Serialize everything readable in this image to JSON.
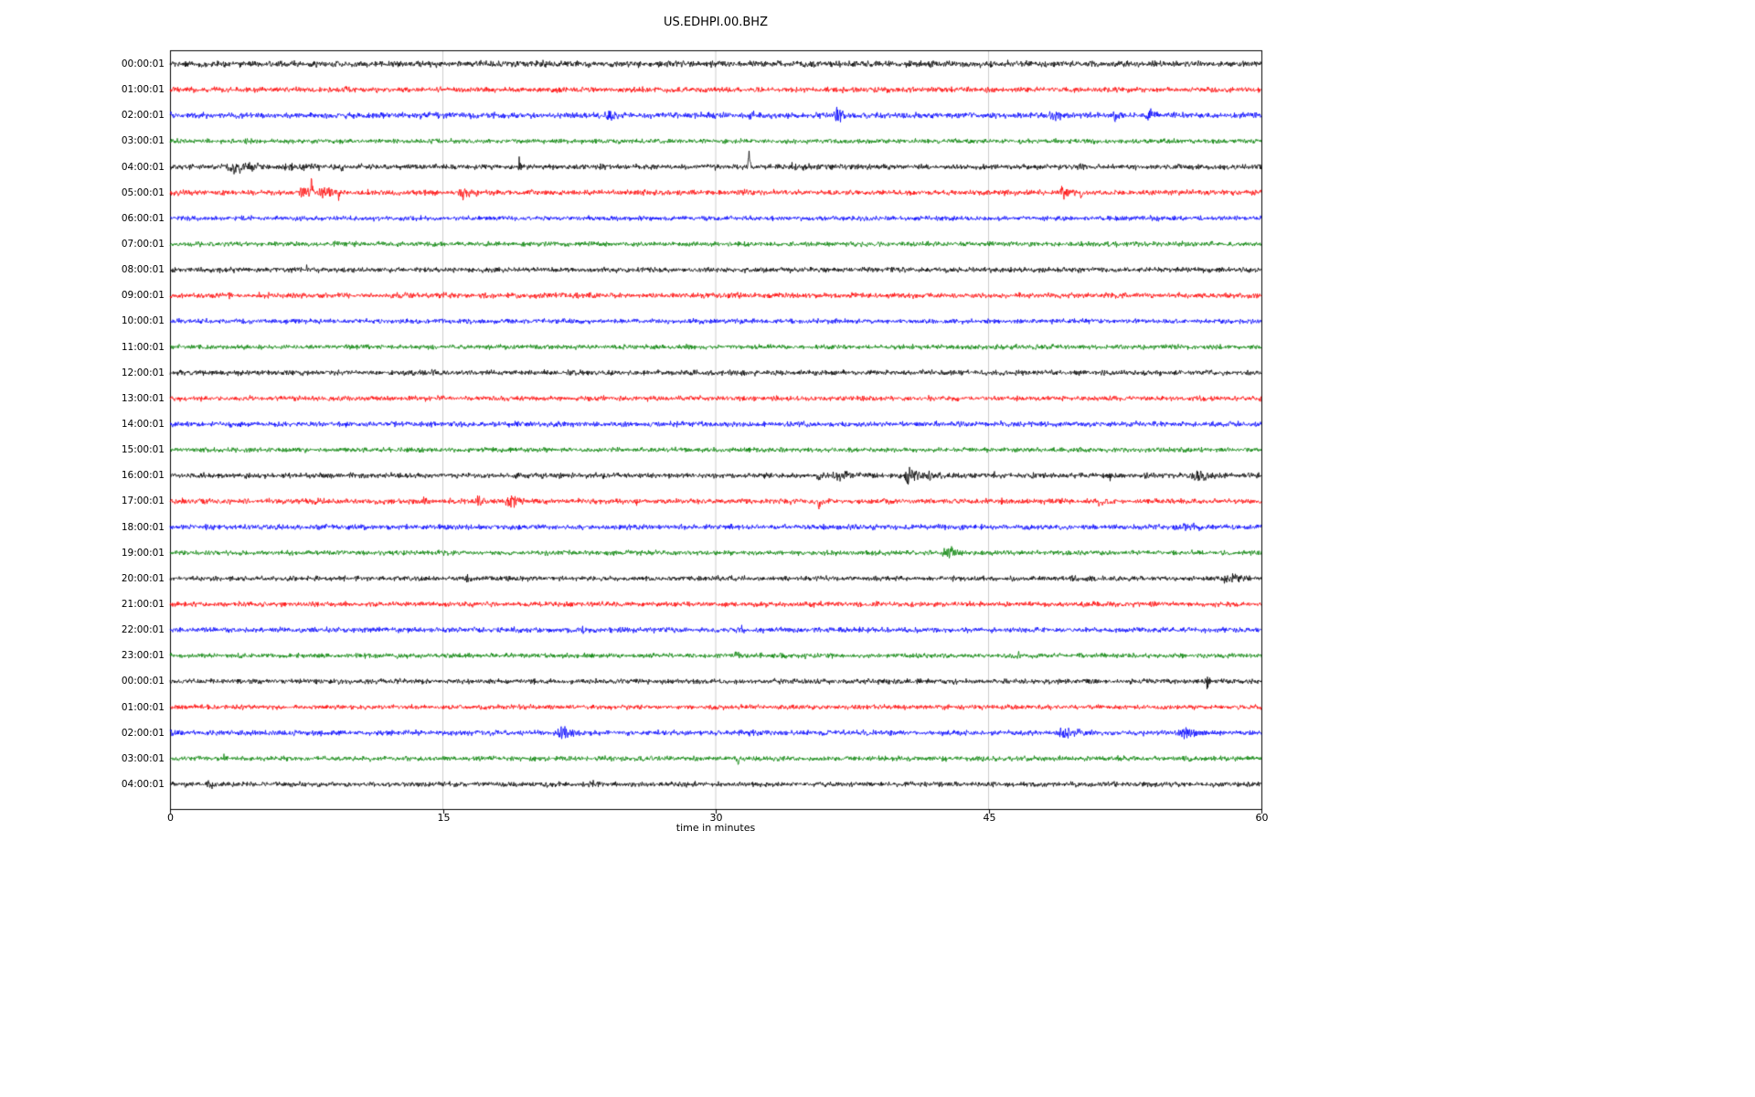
{
  "chart_data": {
    "type": "line",
    "subtype": "seismogram-helicorder",
    "title": "US.EDHPI.00.BHZ",
    "xlabel": "time in minutes",
    "x_range": [
      0,
      60
    ],
    "x_ticks": [
      0,
      15,
      30,
      45,
      60
    ],
    "grid_minutes": [
      15,
      30,
      45
    ],
    "grid_color": "#c0c0c0",
    "axis_color": "#000000",
    "trace_colors_cycle": [
      "#000000",
      "#ff0000",
      "#0000ff",
      "#008000"
    ],
    "rows": [
      {
        "label": "00:00:01",
        "color": "#000000",
        "noise": 2.4,
        "events": []
      },
      {
        "label": "01:00:01",
        "color": "#ff0000",
        "noise": 2.0,
        "events": [
          {
            "start": 9.55,
            "end": 9.85,
            "amp": 6,
            "bias": 1
          }
        ]
      },
      {
        "label": "02:00:01",
        "color": "#0000ff",
        "noise": 2.2,
        "events": [
          {
            "start": 23.7,
            "end": 25.3,
            "amp": 7
          },
          {
            "start": 27.0,
            "end": 27.3,
            "amp": 5
          },
          {
            "start": 31.8,
            "end": 32.1,
            "amp": 8
          },
          {
            "start": 36.4,
            "end": 37.3,
            "amp": 9
          },
          {
            "start": 38.7,
            "end": 39.0,
            "amp": 6
          },
          {
            "start": 48.2,
            "end": 49.2,
            "amp": 5
          },
          {
            "start": 51.8,
            "end": 52.4,
            "amp": 7
          },
          {
            "start": 53.6,
            "end": 54.4,
            "amp": 9
          }
        ]
      },
      {
        "label": "03:00:01",
        "color": "#008000",
        "noise": 1.8,
        "events": []
      },
      {
        "label": "04:00:01",
        "color": "#000000",
        "noise": 2.0,
        "events": [
          {
            "start": 2.9,
            "end": 5.7,
            "amp": 7
          },
          {
            "start": 5.7,
            "end": 9.3,
            "amp": 3.5
          },
          {
            "start": 9.3,
            "end": 9.6,
            "amp": 7,
            "bias": -1
          },
          {
            "start": 19.1,
            "end": 19.4,
            "amp": 11
          },
          {
            "start": 31.75,
            "end": 32.0,
            "amp": 26,
            "bias": 1
          },
          {
            "start": 31.95,
            "end": 32.15,
            "amp": 8,
            "bias": -1
          },
          {
            "start": 32.2,
            "end": 40.5,
            "amp": 2.5
          }
        ]
      },
      {
        "label": "05:00:01",
        "color": "#ff0000",
        "noise": 2.0,
        "events": [
          {
            "start": 7.0,
            "end": 8.0,
            "amp": 8
          },
          {
            "start": 7.7,
            "end": 7.95,
            "amp": 20,
            "bias": 1
          },
          {
            "start": 8.0,
            "end": 9.7,
            "amp": 7
          },
          {
            "start": 9.2,
            "end": 9.45,
            "amp": 10,
            "bias": -1
          },
          {
            "start": 15.8,
            "end": 16.9,
            "amp": 7
          },
          {
            "start": 16.0,
            "end": 16.25,
            "amp": 12,
            "bias": -1
          },
          {
            "start": 48.8,
            "end": 50.0,
            "amp": 7
          },
          {
            "start": 50.0,
            "end": 50.3,
            "amp": 6,
            "bias": -1
          }
        ]
      },
      {
        "label": "06:00:01",
        "color": "#0000ff",
        "noise": 1.8,
        "events": []
      },
      {
        "label": "07:00:01",
        "color": "#008000",
        "noise": 1.8,
        "events": []
      },
      {
        "label": "08:00:01",
        "color": "#000000",
        "noise": 1.9,
        "events": [
          {
            "start": 7.4,
            "end": 7.8,
            "amp": 3
          }
        ]
      },
      {
        "label": "09:00:01",
        "color": "#ff0000",
        "noise": 2.0,
        "events": []
      },
      {
        "label": "10:00:01",
        "color": "#0000ff",
        "noise": 1.8,
        "events": []
      },
      {
        "label": "11:00:01",
        "color": "#008000",
        "noise": 1.8,
        "events": []
      },
      {
        "label": "12:00:01",
        "color": "#000000",
        "noise": 2.0,
        "events": []
      },
      {
        "label": "13:00:01",
        "color": "#ff0000",
        "noise": 1.9,
        "events": []
      },
      {
        "label": "14:00:01",
        "color": "#0000ff",
        "noise": 2.0,
        "events": []
      },
      {
        "label": "15:00:01",
        "color": "#008000",
        "noise": 1.8,
        "events": []
      },
      {
        "label": "16:00:01",
        "color": "#000000",
        "noise": 2.0,
        "events": [
          {
            "start": 35.5,
            "end": 35.75,
            "amp": 11,
            "bias": -1
          },
          {
            "start": 36.0,
            "end": 38.6,
            "amp": 5
          },
          {
            "start": 40.3,
            "end": 41.5,
            "amp": 13
          },
          {
            "start": 41.6,
            "end": 42.1,
            "amp": 8
          },
          {
            "start": 45.2,
            "end": 45.6,
            "amp": 6
          },
          {
            "start": 47.3,
            "end": 48.0,
            "amp": 4
          },
          {
            "start": 51.6,
            "end": 52.0,
            "amp": 8
          },
          {
            "start": 56.0,
            "end": 57.5,
            "amp": 9
          }
        ]
      },
      {
        "label": "17:00:01",
        "color": "#ff0000",
        "noise": 2.0,
        "events": [
          {
            "start": 13.9,
            "end": 14.2,
            "amp": 5
          },
          {
            "start": 16.7,
            "end": 17.5,
            "amp": 7
          },
          {
            "start": 18.4,
            "end": 19.5,
            "amp": 7
          },
          {
            "start": 20.5,
            "end": 20.9,
            "amp": 6,
            "bias": -1
          },
          {
            "start": 25.4,
            "end": 25.8,
            "amp": 5
          },
          {
            "start": 35.6,
            "end": 35.9,
            "amp": 10,
            "bias": -1
          },
          {
            "start": 45.6,
            "end": 46.0,
            "amp": 4
          },
          {
            "start": 51.0,
            "end": 51.3,
            "amp": 7,
            "bias": -1
          }
        ]
      },
      {
        "label": "18:00:01",
        "color": "#0000ff",
        "noise": 2.0,
        "events": [
          {
            "start": 14.7,
            "end": 15.1,
            "amp": 6
          },
          {
            "start": 55.0,
            "end": 58.0,
            "amp": 2.5
          }
        ]
      },
      {
        "label": "19:00:01",
        "color": "#008000",
        "noise": 1.8,
        "events": [
          {
            "start": 42.3,
            "end": 43.6,
            "amp": 9
          },
          {
            "start": 57.8,
            "end": 58.2,
            "amp": 3
          }
        ]
      },
      {
        "label": "20:00:01",
        "color": "#000000",
        "noise": 1.9,
        "events": [
          {
            "start": 16.2,
            "end": 16.6,
            "amp": 5
          },
          {
            "start": 18.4,
            "end": 18.8,
            "amp": 5
          },
          {
            "start": 44.2,
            "end": 44.6,
            "amp": 4
          },
          {
            "start": 49.4,
            "end": 50.0,
            "amp": 5
          },
          {
            "start": 50.5,
            "end": 51.0,
            "amp": 4
          },
          {
            "start": 57.5,
            "end": 59.5,
            "amp": 5
          }
        ]
      },
      {
        "label": "21:00:01",
        "color": "#ff0000",
        "noise": 1.9,
        "events": []
      },
      {
        "label": "22:00:01",
        "color": "#0000ff",
        "noise": 2.0,
        "events": [
          {
            "start": 22.5,
            "end": 22.9,
            "amp": 4
          },
          {
            "start": 27.0,
            "end": 27.4,
            "amp": 4
          },
          {
            "start": 31.3,
            "end": 31.7,
            "amp": 6
          }
        ]
      },
      {
        "label": "23:00:01",
        "color": "#008000",
        "noise": 1.8,
        "events": [
          {
            "start": 31.0,
            "end": 31.5,
            "amp": 5
          },
          {
            "start": 33.5,
            "end": 33.9,
            "amp": 5
          },
          {
            "start": 34.8,
            "end": 35.2,
            "amp": 4
          },
          {
            "start": 46.5,
            "end": 47.0,
            "amp": 5
          }
        ]
      },
      {
        "label": "00:00:01",
        "color": "#000000",
        "noise": 1.9,
        "events": [
          {
            "start": 56.9,
            "end": 57.3,
            "amp": 8
          }
        ]
      },
      {
        "label": "01:00:01",
        "color": "#ff0000",
        "noise": 1.8,
        "events": []
      },
      {
        "label": "02:00:01",
        "color": "#0000ff",
        "noise": 2.0,
        "events": [
          {
            "start": 21.2,
            "end": 22.8,
            "amp": 8
          },
          {
            "start": 48.6,
            "end": 50.7,
            "amp": 7
          },
          {
            "start": 55.2,
            "end": 57.0,
            "amp": 8
          }
        ]
      },
      {
        "label": "03:00:01",
        "color": "#008000",
        "noise": 1.8,
        "events": [
          {
            "start": 2.9,
            "end": 3.2,
            "amp": 5
          },
          {
            "start": 31.1,
            "end": 31.5,
            "amp": 7,
            "bias": -1
          },
          {
            "start": 33.2,
            "end": 33.6,
            "amp": 4
          }
        ]
      },
      {
        "label": "04:00:01",
        "color": "#000000",
        "noise": 1.9,
        "events": [
          {
            "start": 2.0,
            "end": 2.4,
            "amp": 6
          },
          {
            "start": 23.0,
            "end": 23.4,
            "amp": 4
          },
          {
            "start": 24.6,
            "end": 25.0,
            "amp": 4
          }
        ]
      }
    ]
  }
}
